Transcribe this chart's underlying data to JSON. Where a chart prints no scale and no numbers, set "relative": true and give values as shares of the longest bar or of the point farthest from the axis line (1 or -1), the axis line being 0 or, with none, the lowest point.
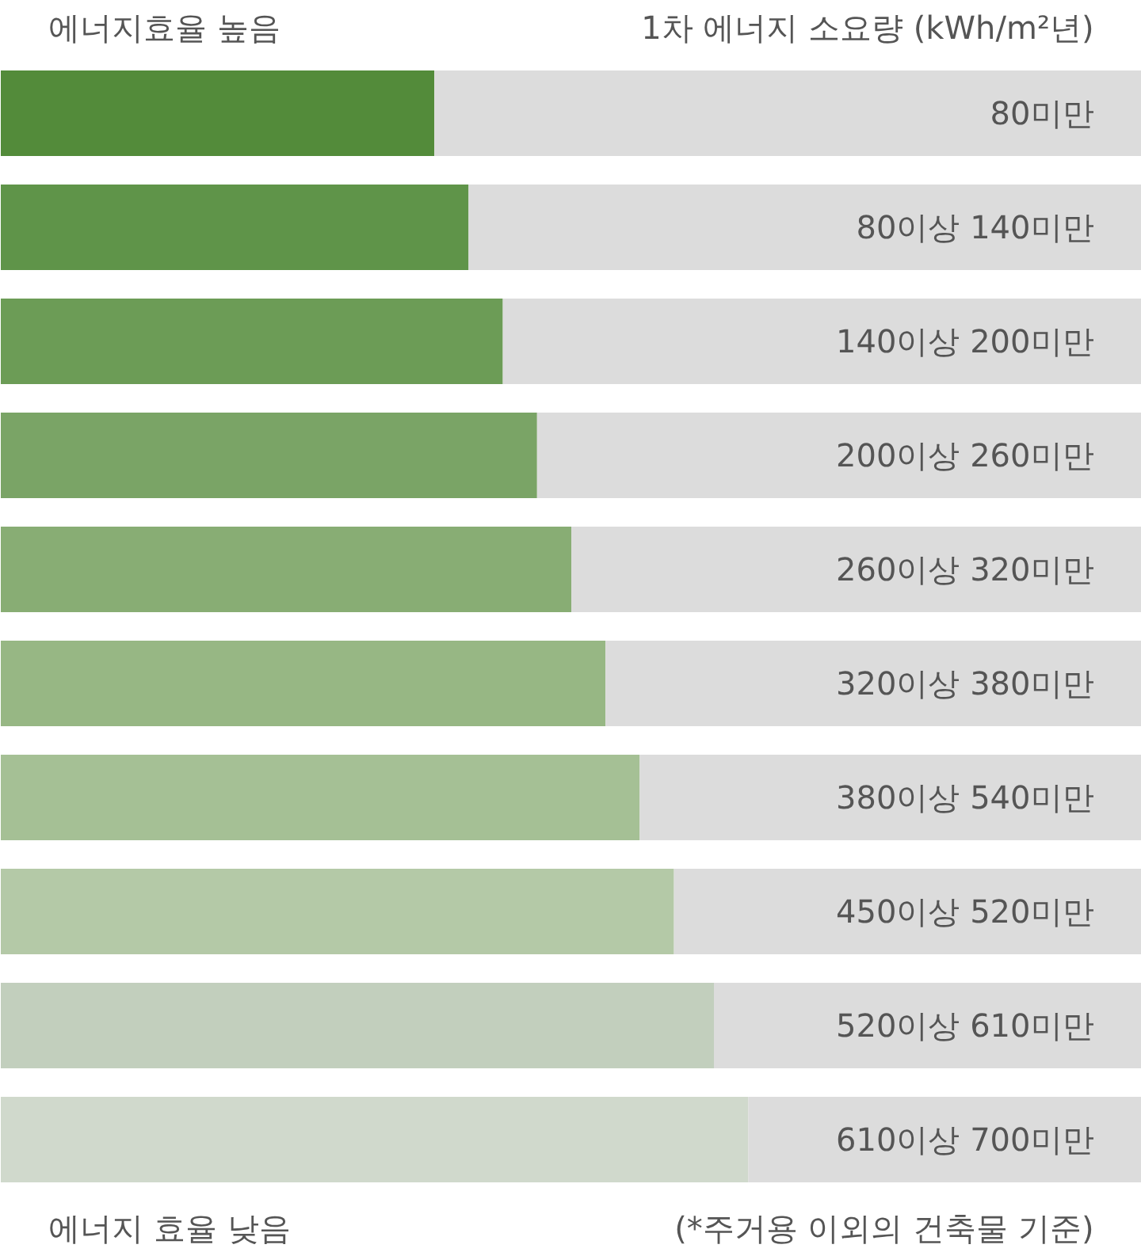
{
  "chart_data": {
    "type": "bar",
    "orientation": "horizontal",
    "stacked": true,
    "relative": true,
    "title": "에너지효율 높음",
    "subtitle": "1차 에너지 소요량 (kWh/m²년)",
    "annotations": [
      "에너지 효율 낮음",
      "(*주거용 이외의 건축물 기준)"
    ],
    "categories": [
      "80미만",
      "80이상 140미만",
      "140이상 200미만",
      "200이상 260미만",
      "260이상 320미만",
      "320이상 380미만",
      "380이상 540미만",
      "450이상 520미만",
      "520이상 610미만",
      "610이상 700미만"
    ],
    "series": [
      {
        "colors": [
          "#538b3a",
          "#5f9449",
          "#6c9c56",
          "#7aa466",
          "#88ad74",
          "#97b784",
          "#a5c095",
          "#b4c9a7",
          "#c2cfbd",
          "#d0d9cc"
        ],
        "values": [
          0.38,
          0.41,
          0.44,
          0.47,
          0.5,
          0.53,
          0.56,
          0.59,
          0.625,
          0.655
        ]
      },
      {
        "color": "#dcdcdc",
        "values": [
          0.62,
          0.59,
          0.56,
          0.53,
          0.5,
          0.47,
          0.44,
          0.41,
          0.375,
          0.345
        ]
      }
    ],
    "grid": false
  }
}
